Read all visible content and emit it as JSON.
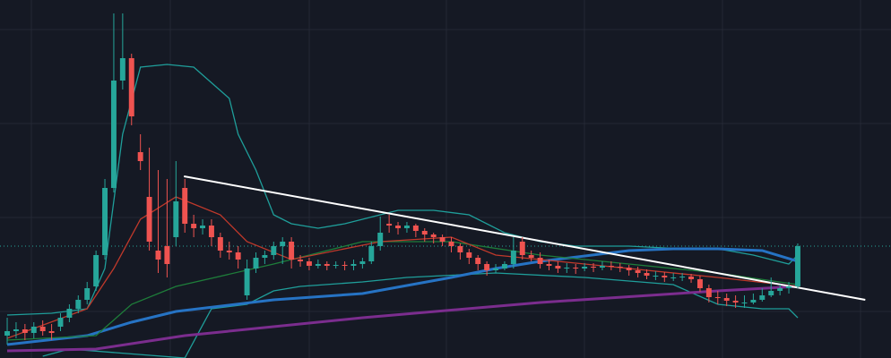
{
  "chart_data": {
    "type": "candlestick",
    "background": "#151924",
    "up_color": "#26a69a",
    "down_color": "#ef5350",
    "xlim": [
      -0.81,
      99.5
    ],
    "ylim": [
      0,
      400
    ],
    "open": [
      25,
      30,
      32,
      28,
      35,
      30,
      35,
      45,
      55,
      65,
      80,
      115,
      190,
      310,
      335,
      230,
      180,
      120,
      125,
      135,
      190,
      150,
      145,
      148,
      135,
      120,
      118,
      70,
      100,
      112,
      115,
      125,
      130,
      110,
      108,
      103,
      105,
      103,
      104,
      103,
      105,
      108,
      125,
      150,
      148,
      145,
      148,
      142,
      138,
      135,
      130,
      125,
      118,
      112,
      105,
      98,
      100,
      105,
      130,
      115,
      112,
      105,
      103,
      100,
      101,
      100,
      102,
      101,
      103,
      102,
      101,
      98,
      95,
      92,
      92,
      90,
      90,
      91,
      88,
      78,
      68,
      67,
      64,
      62,
      62,
      65,
      70,
      75,
      78,
      80
    ],
    "high": [
      45,
      40,
      38,
      40,
      42,
      38,
      50,
      60,
      70,
      85,
      120,
      200,
      385,
      385,
      340,
      250,
      235,
      210,
      200,
      220,
      200,
      160,
      155,
      155,
      140,
      130,
      125,
      110,
      118,
      120,
      130,
      135,
      135,
      115,
      112,
      110,
      108,
      108,
      108,
      110,
      112,
      130,
      158,
      160,
      152,
      152,
      150,
      145,
      140,
      138,
      135,
      128,
      122,
      115,
      108,
      105,
      108,
      135,
      135,
      120,
      118,
      110,
      108,
      106,
      105,
      106,
      106,
      108,
      108,
      106,
      104,
      102,
      99,
      97,
      96,
      95,
      95,
      94,
      92,
      82,
      75,
      72,
      70,
      70,
      72,
      78,
      90,
      82,
      85,
      128
    ],
    "low": [
      15,
      22,
      20,
      22,
      25,
      20,
      30,
      40,
      50,
      60,
      75,
      110,
      185,
      300,
      260,
      210,
      120,
      95,
      90,
      125,
      140,
      135,
      138,
      125,
      112,
      110,
      100,
      65,
      95,
      105,
      110,
      105,
      100,
      102,
      98,
      100,
      98,
      100,
      98,
      98,
      100,
      105,
      120,
      140,
      138,
      140,
      135,
      130,
      128,
      125,
      118,
      110,
      105,
      98,
      92,
      95,
      98,
      100,
      110,
      108,
      100,
      98,
      95,
      95,
      94,
      97,
      96,
      98,
      98,
      96,
      92,
      90,
      88,
      87,
      85,
      86,
      86,
      84,
      74,
      62,
      60,
      58,
      56,
      56,
      60,
      63,
      68,
      70,
      72,
      78
    ],
    "close": [
      30,
      32,
      28,
      35,
      30,
      28,
      45,
      55,
      65,
      78,
      115,
      190,
      310,
      335,
      270,
      220,
      130,
      110,
      105,
      175,
      150,
      145,
      148,
      135,
      120,
      118,
      110,
      100,
      112,
      115,
      125,
      130,
      110,
      108,
      103,
      105,
      103,
      104,
      103,
      105,
      108,
      125,
      140,
      148,
      145,
      148,
      142,
      138,
      135,
      130,
      125,
      118,
      112,
      105,
      98,
      100,
      105,
      120,
      115,
      112,
      105,
      103,
      100,
      101,
      100,
      102,
      101,
      103,
      102,
      101,
      98,
      95,
      92,
      92,
      90,
      90,
      91,
      88,
      78,
      68,
      67,
      64,
      62,
      62,
      65,
      70,
      75,
      78,
      80,
      125
    ],
    "series": [
      {
        "color": "#1f9e9a",
        "x": [
          0,
          5,
          9,
          11,
          13,
          15,
          18,
          21,
          25,
          26,
          28,
          30,
          32,
          35,
          38,
          40,
          42,
          44,
          48,
          52,
          56,
          60,
          64,
          70,
          76,
          80,
          84,
          88,
          89
        ],
        "values": [
          48,
          50,
          55,
          100,
          250,
          325,
          328,
          325,
          290,
          250,
          210,
          160,
          150,
          145,
          150,
          155,
          160,
          165,
          165,
          160,
          140,
          130,
          125,
          125,
          122,
          122,
          115,
          105,
          115
        ]
      },
      {
        "color": "#1f9e9a",
        "x": [
          4,
          7,
          20,
          23,
          27,
          30,
          33,
          40,
          45,
          55,
          65,
          75,
          80,
          85,
          88,
          89
        ],
        "values": [
          2,
          10,
          0,
          55,
          60,
          75,
          80,
          85,
          90,
          95,
          90,
          82,
          60,
          55,
          55,
          45
        ]
      },
      {
        "color": "#7b2d8e",
        "x": [
          0,
          10,
          20,
          40,
          60,
          80,
          89
        ],
        "values": [
          8,
          10,
          25,
          45,
          62,
          75,
          80
        ]
      },
      {
        "color": "#2673c4",
        "x": [
          0,
          9,
          14,
          19,
          30,
          40,
          50,
          55,
          60,
          70,
          75,
          80,
          85,
          89
        ],
        "values": [
          15,
          25,
          40,
          52,
          65,
          72,
          90,
          100,
          108,
          120,
          122,
          122,
          120,
          108
        ]
      },
      {
        "color": "#1e7d3a",
        "x": [
          0,
          10,
          14,
          19,
          30,
          40,
          50,
          60,
          70,
          80,
          89
        ],
        "values": [
          20,
          25,
          60,
          80,
          105,
          130,
          130,
          115,
          105,
          95,
          82
        ]
      },
      {
        "color": "#c0392b",
        "x": [
          0,
          9,
          12,
          15,
          19,
          24,
          27,
          32,
          42,
          50,
          55,
          70,
          80,
          89
        ],
        "values": [
          22,
          55,
          100,
          155,
          180,
          160,
          130,
          110,
          130,
          135,
          115,
          100,
          90,
          80
        ]
      },
      {
        "color": "#ffffff",
        "x": [
          19.9,
          96.6
        ],
        "values": [
          203,
          65
        ]
      }
    ]
  }
}
